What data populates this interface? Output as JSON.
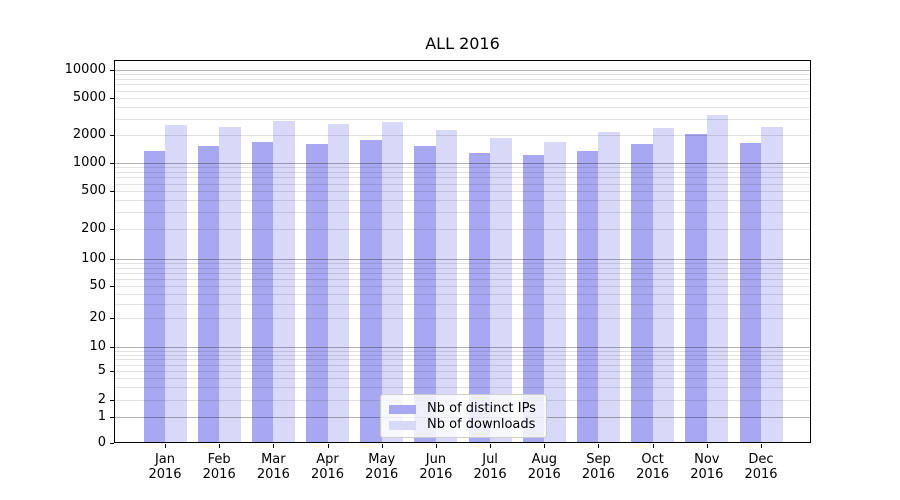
{
  "chart_data": {
    "type": "bar",
    "title": "ALL 2016",
    "x_axis": {
      "categories": [
        "Jan",
        "Feb",
        "Mar",
        "Apr",
        "May",
        "Jun",
        "Jul",
        "Aug",
        "Sep",
        "Oct",
        "Nov",
        "Dec"
      ],
      "year_label": "2016"
    },
    "y_axis": {
      "scale": "symlog",
      "ticks": [
        0,
        1,
        2,
        5,
        10,
        20,
        50,
        100,
        200,
        500,
        1000,
        2000,
        5000,
        10000
      ],
      "tick_labels": [
        "0",
        "1",
        "2",
        "5",
        "10",
        "20",
        "50",
        "100",
        "200",
        "500",
        "1000",
        "2000",
        "5000",
        "10000"
      ],
      "range_top": 13000
    },
    "series": [
      {
        "name": "Nb of distinct IPs",
        "color": "#a8a8f2",
        "values": [
          1340,
          1520,
          1700,
          1600,
          1760,
          1520,
          1280,
          1220,
          1350,
          1600,
          2050,
          1630
        ]
      },
      {
        "name": "Nb of downloads",
        "color": "#d8d8f8",
        "values": [
          2540,
          2420,
          2850,
          2650,
          2740,
          2280,
          1870,
          1680,
          2170,
          2380,
          3300,
          2460
        ]
      }
    ],
    "legend": {
      "position": "lower center",
      "entries": [
        "Nb of distinct IPs",
        "Nb of downloads"
      ]
    },
    "grid": "both",
    "colors": {
      "background": "#ffffff",
      "axis": "#000000",
      "grid_major": "#b2b2b2",
      "grid_minor": "#e2e2e2",
      "legend_border": "#cccccc"
    }
  }
}
